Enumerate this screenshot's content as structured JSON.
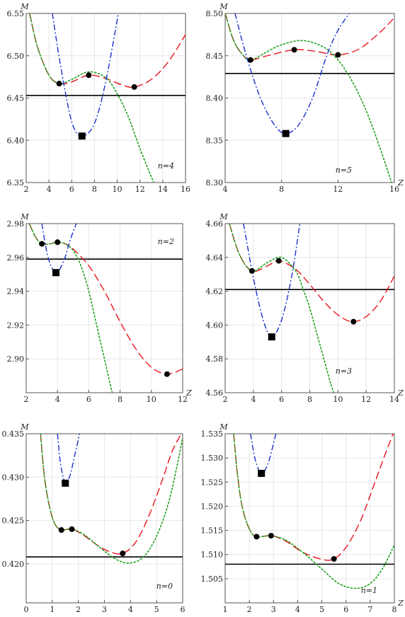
{
  "chart_data": [
    {
      "type": "line",
      "n_label": "n=4",
      "xlabel": "",
      "ylabel": "M",
      "xlim": [
        2,
        16
      ],
      "ylim": [
        6.35,
        6.55
      ],
      "xticks": [
        2,
        4,
        6,
        8,
        10,
        12,
        14,
        16
      ],
      "yticks": [
        6.35,
        6.4,
        6.45,
        6.5,
        6.55
      ],
      "ytick_decimals": 2,
      "grid": true,
      "hline": 6.453,
      "series": [
        {
          "style": "red-dashed",
          "color": "#e8141e",
          "x": [
            2.3,
            3,
            4,
            4.9,
            6,
            7.5,
            9,
            10.5,
            11.5,
            13,
            14.5,
            16
          ],
          "y": [
            6.55,
            6.51,
            6.477,
            6.467,
            6.469,
            6.477,
            6.473,
            6.465,
            6.463,
            6.472,
            6.493,
            6.525
          ]
        },
        {
          "style": "green-dotted",
          "color": "#1fa01f",
          "x": [
            2.3,
            3,
            4,
            4.9,
            6,
            7.5,
            9,
            10,
            11,
            12,
            13.2
          ],
          "y": [
            6.55,
            6.51,
            6.477,
            6.467,
            6.472,
            6.481,
            6.474,
            6.455,
            6.427,
            6.39,
            6.35
          ]
        },
        {
          "style": "blue-dashdot",
          "color": "#1a2fd0",
          "x": [
            4.3,
            5,
            6,
            6.9,
            8,
            9,
            10.1
          ],
          "y": [
            6.55,
            6.49,
            6.422,
            6.405,
            6.42,
            6.47,
            6.55
          ]
        }
      ],
      "circles": [
        {
          "x": 4.9,
          "y": 6.467
        },
        {
          "x": 7.5,
          "y": 6.477
        },
        {
          "x": 11.5,
          "y": 6.463
        }
      ],
      "squares": [
        {
          "x": 6.9,
          "y": 6.405
        }
      ]
    },
    {
      "type": "line",
      "n_label": "n=5",
      "xlabel": "Z",
      "ylabel": "M",
      "xlim": [
        4,
        16
      ],
      "ylim": [
        8.3,
        8.5
      ],
      "xticks": [
        4,
        8,
        12,
        16
      ],
      "yticks": [
        8.3,
        8.35,
        8.4,
        8.45,
        8.5
      ],
      "ytick_decimals": 2,
      "grid": true,
      "hline": 8.429,
      "series": [
        {
          "style": "red-dashed",
          "color": "#e8141e",
          "x": [
            4,
            4.6,
            5.2,
            5.8,
            7,
            8.9,
            10.5,
            12,
            13.5,
            15,
            16
          ],
          "y": [
            8.5,
            8.468,
            8.452,
            8.445,
            8.45,
            8.457,
            8.455,
            8.451,
            8.458,
            8.478,
            8.495
          ]
        },
        {
          "style": "green-dotted",
          "color": "#1fa01f",
          "x": [
            4,
            4.6,
            5.2,
            5.8,
            7,
            8,
            9.5,
            11,
            12,
            13,
            14,
            15,
            15.8
          ],
          "y": [
            8.5,
            8.468,
            8.452,
            8.445,
            8.455,
            8.463,
            8.468,
            8.46,
            8.445,
            8.42,
            8.385,
            8.34,
            8.3
          ]
        },
        {
          "style": "blue-dashdot",
          "color": "#1a2fd0",
          "x": [
            4.7,
            5.5,
            6.5,
            7.5,
            8.3,
            9.2,
            10.2,
            11.2,
            12,
            12.8
          ],
          "y": [
            8.5,
            8.45,
            8.4,
            8.368,
            8.358,
            8.368,
            8.4,
            8.45,
            8.48,
            8.5
          ]
        }
      ],
      "circles": [
        {
          "x": 5.8,
          "y": 8.445
        },
        {
          "x": 8.9,
          "y": 8.457
        },
        {
          "x": 12.0,
          "y": 8.451
        }
      ],
      "squares": [
        {
          "x": 8.3,
          "y": 8.358
        }
      ]
    },
    {
      "type": "line",
      "n_label": "n=2",
      "xlabel": "Z",
      "ylabel": "M",
      "xlim": [
        2,
        12
      ],
      "ylim": [
        2.88,
        2.98
      ],
      "xticks": [
        2,
        4,
        6,
        8,
        10,
        12
      ],
      "yticks": [
        2.9,
        2.92,
        2.94,
        2.96,
        2.98
      ],
      "ytick_decimals": 2,
      "grid": true,
      "hline": 2.959,
      "series": [
        {
          "style": "red-dashed",
          "color": "#e8141e",
          "x": [
            2.2,
            2.6,
            3,
            3.5,
            4,
            4.5,
            5,
            6,
            7,
            8,
            9,
            10,
            11,
            12
          ],
          "y": [
            2.98,
            2.972,
            2.968,
            2.968,
            2.969,
            2.968,
            2.965,
            2.955,
            2.94,
            2.922,
            2.906,
            2.895,
            2.891,
            2.894
          ]
        },
        {
          "style": "green-dotted",
          "color": "#1fa01f",
          "x": [
            2.2,
            2.6,
            3,
            3.5,
            4,
            4.5,
            5,
            5.5,
            6,
            6.5,
            7,
            7.5,
            8
          ],
          "y": [
            2.98,
            2.972,
            2.968,
            2.968,
            2.969,
            2.968,
            2.964,
            2.955,
            2.94,
            2.92,
            2.9,
            2.88,
            2.865
          ]
        },
        {
          "style": "blue-dashdot",
          "color": "#1a2fd0",
          "x": [
            3.0,
            3.4,
            3.9,
            4.4,
            4.8,
            5.2
          ],
          "y": [
            2.98,
            2.96,
            2.951,
            2.958,
            2.97,
            2.98
          ]
        }
      ],
      "circles": [
        {
          "x": 3.0,
          "y": 2.968
        },
        {
          "x": 4.0,
          "y": 2.969
        },
        {
          "x": 11.0,
          "y": 2.891
        }
      ],
      "squares": [
        {
          "x": 3.9,
          "y": 2.951
        }
      ]
    },
    {
      "type": "line",
      "n_label": "n=3",
      "xlabel": "Z",
      "ylabel": "M",
      "xlim": [
        2,
        14
      ],
      "ylim": [
        4.56,
        4.66
      ],
      "xticks": [
        2,
        4,
        6,
        8,
        10,
        12,
        14
      ],
      "yticks": [
        4.56,
        4.58,
        4.6,
        4.62,
        4.64,
        4.66
      ],
      "ytick_decimals": 2,
      "grid": true,
      "hline": 4.621,
      "series": [
        {
          "style": "red-dashed",
          "color": "#e8141e",
          "x": [
            2.3,
            3,
            3.9,
            5,
            5.8,
            7,
            8,
            9,
            10,
            11,
            12,
            13,
            14
          ],
          "y": [
            4.66,
            4.642,
            4.632,
            4.635,
            4.638,
            4.633,
            4.624,
            4.614,
            4.606,
            4.602,
            4.605,
            4.614,
            4.629
          ]
        },
        {
          "style": "green-dotted",
          "color": "#1fa01f",
          "x": [
            2.3,
            3,
            3.9,
            5,
            6,
            7,
            7.5,
            8,
            8.5,
            9,
            9.5,
            10
          ],
          "y": [
            4.66,
            4.642,
            4.632,
            4.637,
            4.64,
            4.632,
            4.622,
            4.61,
            4.595,
            4.58,
            4.565,
            4.553
          ]
        },
        {
          "style": "blue-dashdot",
          "color": "#1a2fd0",
          "x": [
            3.3,
            4,
            4.7,
            5.3,
            6,
            6.7,
            7.3
          ],
          "y": [
            4.66,
            4.628,
            4.603,
            4.593,
            4.603,
            4.628,
            4.66
          ]
        }
      ],
      "circles": [
        {
          "x": 3.9,
          "y": 4.632
        },
        {
          "x": 5.8,
          "y": 4.638
        },
        {
          "x": 11.1,
          "y": 4.602
        }
      ],
      "squares": [
        {
          "x": 5.3,
          "y": 4.593
        }
      ]
    },
    {
      "type": "line",
      "n_label": "n=0",
      "xlabel": "",
      "ylabel": "M",
      "xlim": [
        0,
        6
      ],
      "ylim": [
        0.4155,
        0.435
      ],
      "xticks": [
        0,
        1,
        2,
        3,
        4,
        5,
        6
      ],
      "yticks": [
        0.42,
        0.425,
        0.43,
        0.435
      ],
      "ytick_decimals": 3,
      "grid": true,
      "hline": 0.4208,
      "series": [
        {
          "style": "red-dashed",
          "color": "#e8141e",
          "x": [
            0.55,
            0.7,
            0.9,
            1.1,
            1.35,
            1.75,
            2.2,
            2.7,
            3.2,
            3.7,
            4.2,
            4.7,
            5.2,
            5.6,
            5.95
          ],
          "y": [
            0.435,
            0.43,
            0.4265,
            0.4246,
            0.4239,
            0.424,
            0.4233,
            0.4222,
            0.4214,
            0.4212,
            0.4225,
            0.4255,
            0.4295,
            0.433,
            0.435
          ]
        },
        {
          "style": "green-dotted",
          "color": "#1fa01f",
          "x": [
            0.55,
            0.7,
            0.9,
            1.1,
            1.35,
            1.75,
            2.2,
            2.7,
            3.2,
            3.6,
            4.0,
            4.5,
            5.0,
            5.5,
            6.0
          ],
          "y": [
            0.435,
            0.43,
            0.4265,
            0.4246,
            0.4239,
            0.424,
            0.4234,
            0.4222,
            0.421,
            0.4203,
            0.4201,
            0.4208,
            0.4232,
            0.4275,
            0.4345
          ]
        },
        {
          "style": "blue-dashdot",
          "color": "#1a2fd0",
          "x": [
            1.2,
            1.32,
            1.5,
            1.68,
            1.86,
            2.05
          ],
          "y": [
            0.435,
            0.4315,
            0.4293,
            0.4302,
            0.4325,
            0.435
          ]
        }
      ],
      "circles": [
        {
          "x": 1.35,
          "y": 0.4239
        },
        {
          "x": 1.75,
          "y": 0.424
        },
        {
          "x": 3.7,
          "y": 0.4212
        }
      ],
      "squares": [
        {
          "x": 1.5,
          "y": 0.4293
        }
      ]
    },
    {
      "type": "line",
      "n_label": "n=1",
      "xlabel": "Z",
      "ylabel": "M",
      "xlim": [
        1,
        8
      ],
      "ylim": [
        1.5,
        1.535
      ],
      "xticks": [
        1,
        2,
        3,
        4,
        5,
        6,
        7,
        8
      ],
      "yticks": [
        1.505,
        1.51,
        1.515,
        1.52,
        1.525,
        1.53,
        1.535
      ],
      "ytick_decimals": 3,
      "grid": true,
      "hline": 1.508,
      "series": [
        {
          "style": "red-dashed",
          "color": "#e8141e",
          "x": [
            1.35,
            1.5,
            1.7,
            2.0,
            2.3,
            2.9,
            3.5,
            4.2,
            5.0,
            5.5,
            6.0,
            6.6,
            7.2,
            7.6,
            7.95
          ],
          "y": [
            1.535,
            1.527,
            1.52,
            1.5153,
            1.5137,
            1.5139,
            1.5128,
            1.5105,
            1.509,
            1.5091,
            1.5115,
            1.517,
            1.525,
            1.5305,
            1.535
          ]
        },
        {
          "style": "green-dotted",
          "color": "#1fa01f",
          "x": [
            1.35,
            1.5,
            1.7,
            2.0,
            2.3,
            2.9,
            3.5,
            4.2,
            5.0,
            5.7,
            6.4,
            7.0,
            7.5,
            8.0
          ],
          "y": [
            1.535,
            1.527,
            1.52,
            1.5153,
            1.5137,
            1.5139,
            1.513,
            1.5105,
            1.507,
            1.504,
            1.503,
            1.504,
            1.507,
            1.512
          ]
        },
        {
          "style": "blue-dashdot",
          "color": "#1a2fd0",
          "x": [
            2.05,
            2.25,
            2.5,
            2.75,
            2.95,
            3.1
          ],
          "y": [
            1.535,
            1.5295,
            1.5268,
            1.5285,
            1.532,
            1.535
          ]
        }
      ],
      "circles": [
        {
          "x": 2.3,
          "y": 1.5137
        },
        {
          "x": 2.9,
          "y": 1.5139
        },
        {
          "x": 5.5,
          "y": 1.5091
        }
      ],
      "squares": [
        {
          "x": 2.5,
          "y": 1.5268
        }
      ]
    }
  ]
}
